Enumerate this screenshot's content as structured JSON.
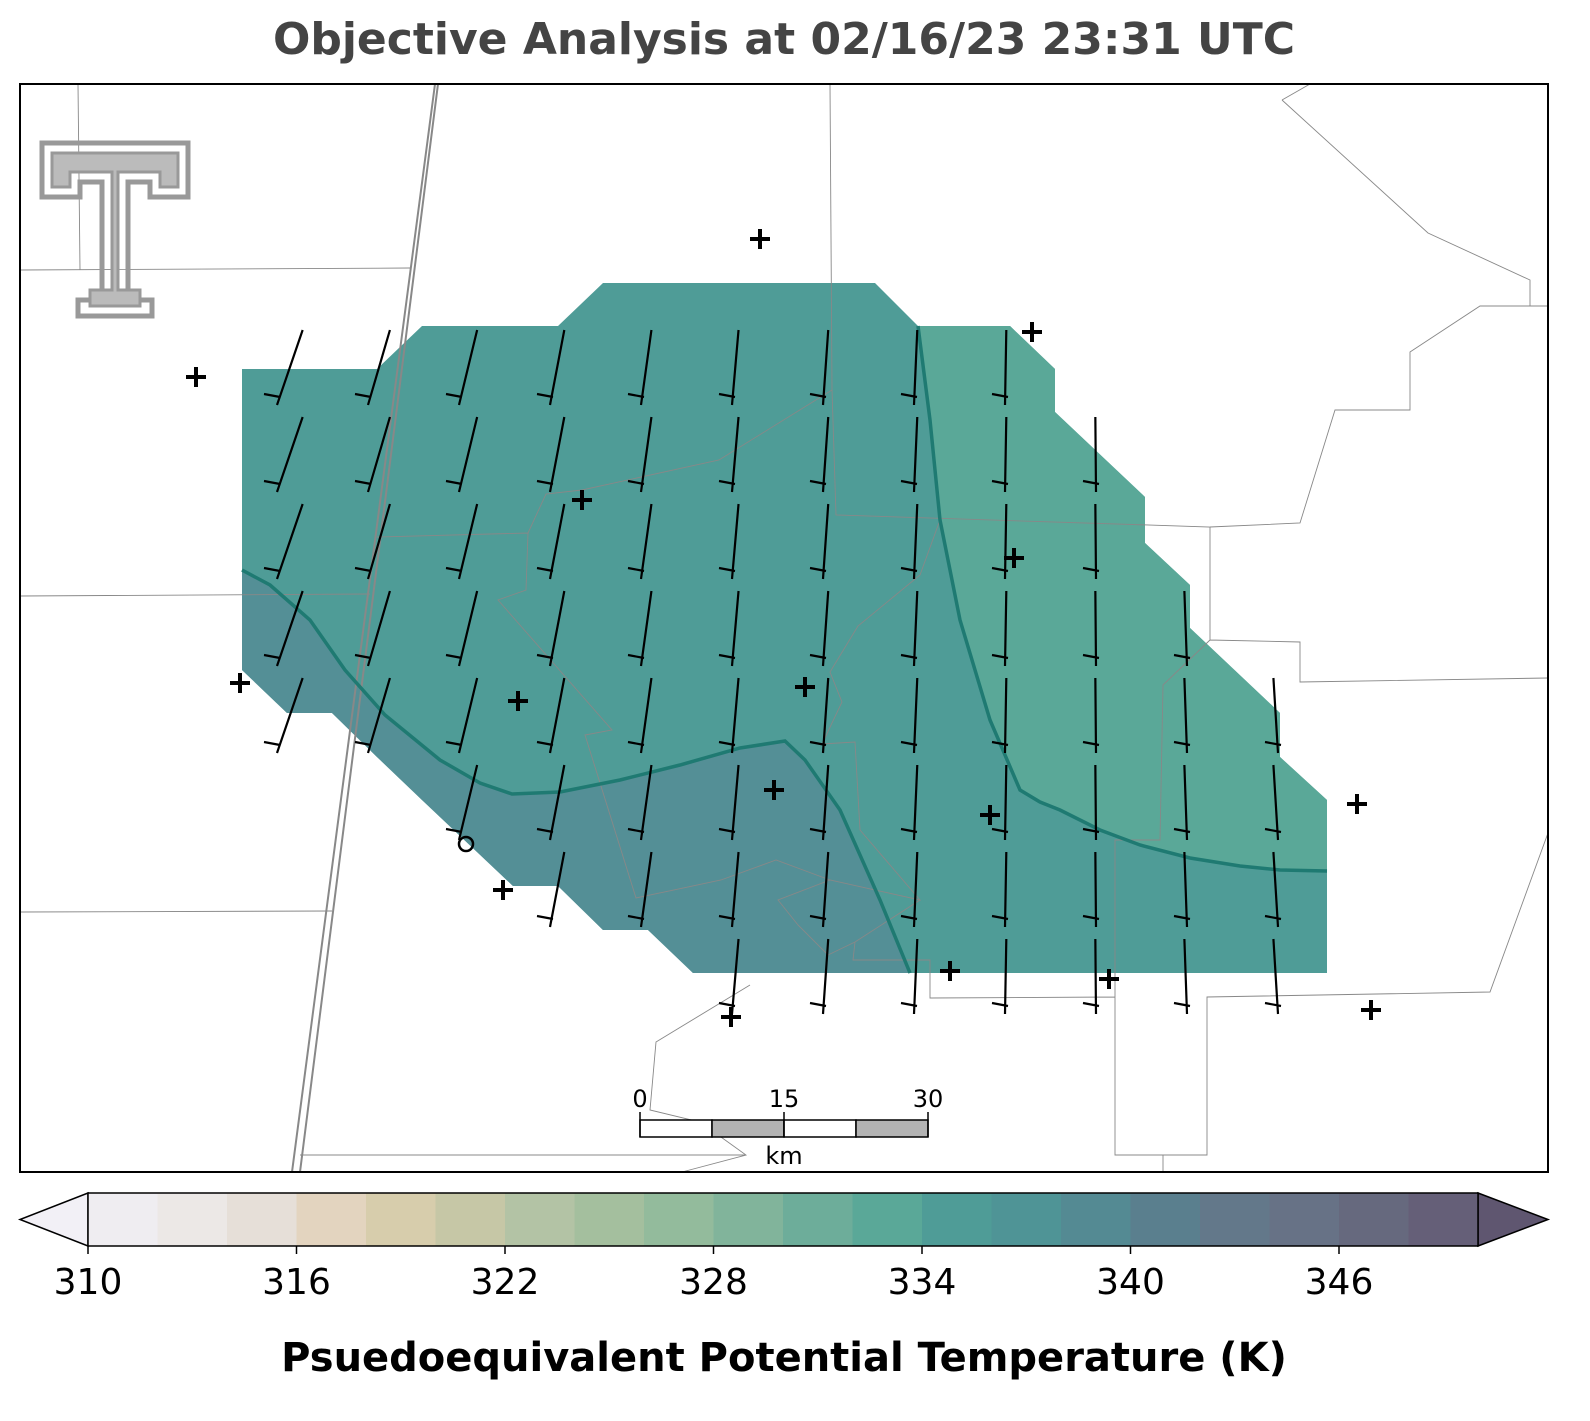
{
  "title": "Objective Analysis at 02/16/23 23:31 UTC",
  "colorbar": {
    "label": "Psuedoequivalent Potential Temperature (K)",
    "lim": [
      310,
      350
    ],
    "ticks": [
      310,
      316,
      322,
      328,
      334,
      340,
      346
    ],
    "colors": [
      "#efedf1",
      "#ece8e6",
      "#e6dfd8",
      "#e3d4bf",
      "#d7cdac",
      "#c6c7a6",
      "#b3c3a5",
      "#a4bf9e",
      "#93bb9c",
      "#81b49b",
      "#6dad9a",
      "#5aa898",
      "#4f9c97",
      "#4f9496",
      "#548a93",
      "#5a7f8e",
      "#63788a",
      "#677286",
      "#66697e",
      "#655f78"
    ],
    "extend_colors": [
      "#f2f0f6",
      "#5f5670"
    ]
  },
  "scale_bar": {
    "ticks": [
      0,
      15,
      30
    ],
    "unit": "km"
  }
}
